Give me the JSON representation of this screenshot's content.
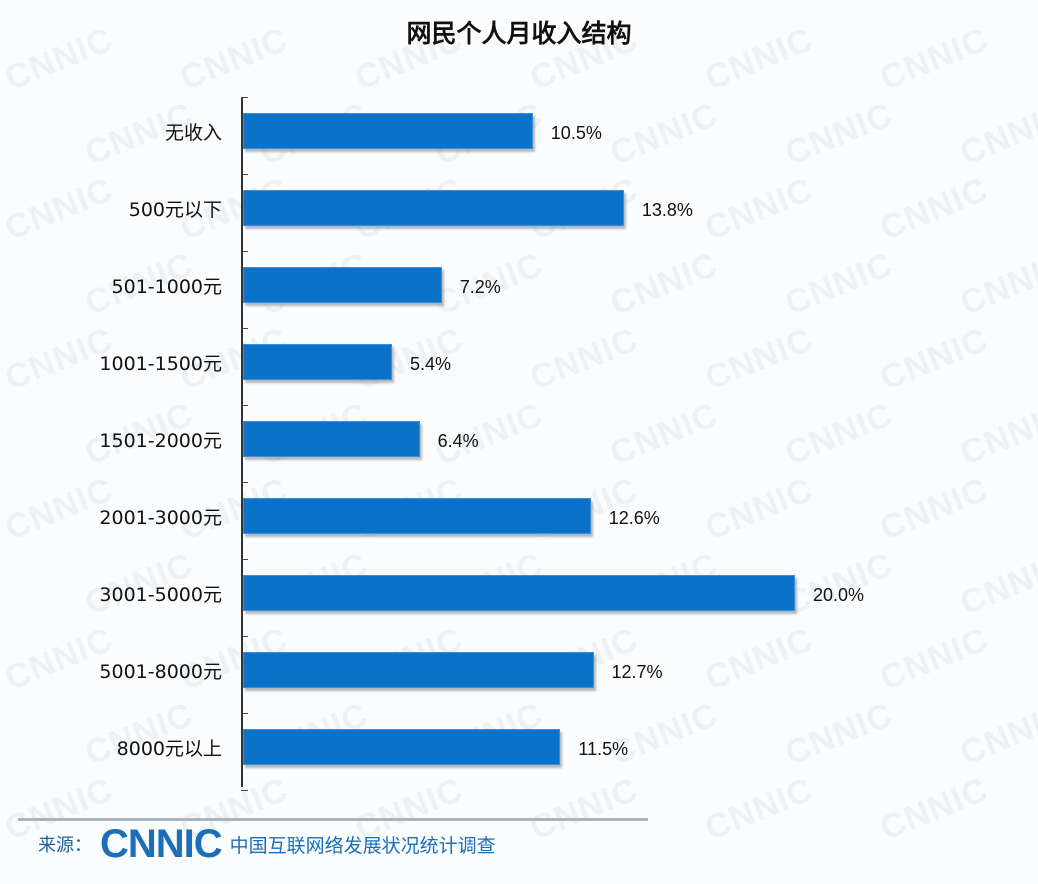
{
  "chart_data": {
    "type": "bar",
    "orientation": "horizontal",
    "title": "网民个人月收入结构",
    "xlabel": "",
    "ylabel": "",
    "categories": [
      "无收入",
      "500元以下",
      "501-1000元",
      "1001-1500元",
      "1501-2000元",
      "2001-3000元",
      "3001-5000元",
      "5001-8000元",
      "8000元以上"
    ],
    "values": [
      10.5,
      13.8,
      7.2,
      5.4,
      6.4,
      12.6,
      20.0,
      12.7,
      11.5
    ],
    "value_labels": [
      "10.5%",
      "13.8%",
      "7.2%",
      "5.4%",
      "6.4%",
      "12.6%",
      "20.0%",
      "12.7%",
      "11.5%"
    ],
    "unit": "%",
    "xlim": [
      0,
      20
    ],
    "grid": false,
    "legend": null,
    "bar_color": "#0a72c8"
  },
  "footer": {
    "source_label": "来源：",
    "logo_text": "CNNIC",
    "source_name": "中国互联网络发展状况统计调查"
  },
  "watermark": "CNNIC"
}
